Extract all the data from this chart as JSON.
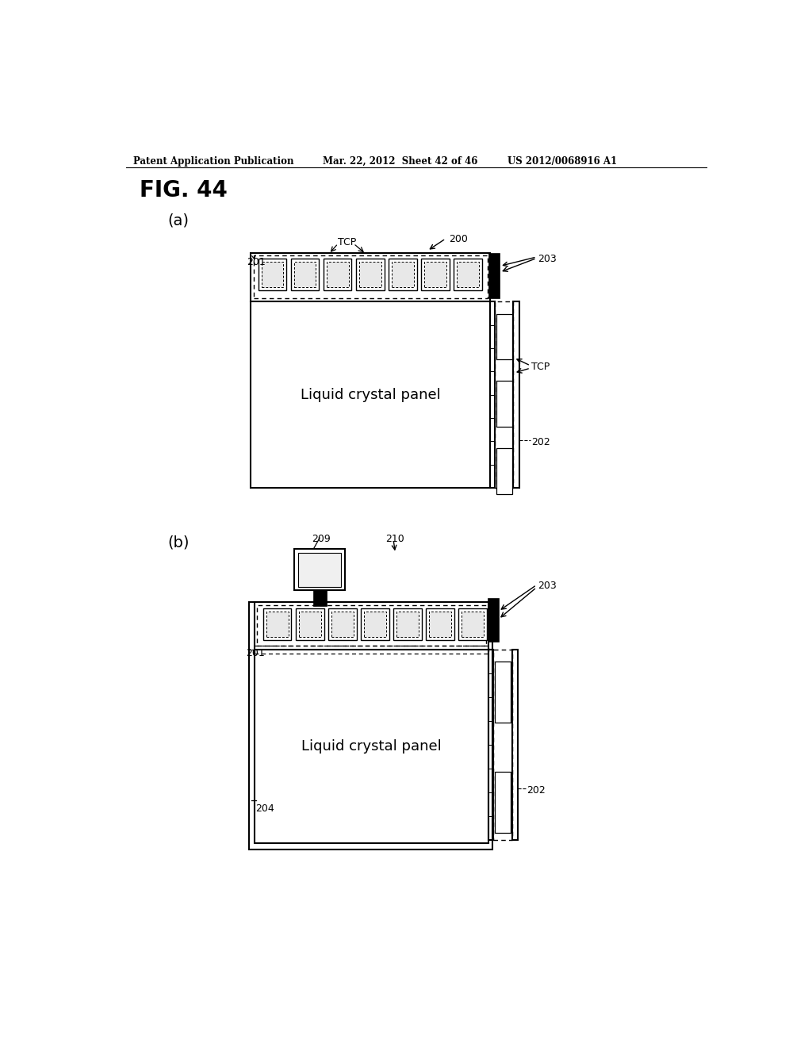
{
  "background_color": "#ffffff",
  "header_left": "Patent Application Publication",
  "header_center": "Mar. 22, 2012  Sheet 42 of 46",
  "header_right": "US 2012/0068916 A1",
  "fig_title": "FIG. 44",
  "panel_a_label": "(a)",
  "panel_b_label": "(b)",
  "label_200": "200",
  "label_201a": "201",
  "label_202a": "202",
  "label_203a": "203",
  "label_TCP_top_a": "TCP",
  "label_TCP_right_a": "TCP",
  "label_lcp_a": "Liquid crystal panel",
  "label_209": "209",
  "label_210": "210",
  "label_201b": "201",
  "label_202b": "202",
  "label_203b": "203",
  "label_204": "204",
  "label_lcp_b": "Liquid crystal panel"
}
